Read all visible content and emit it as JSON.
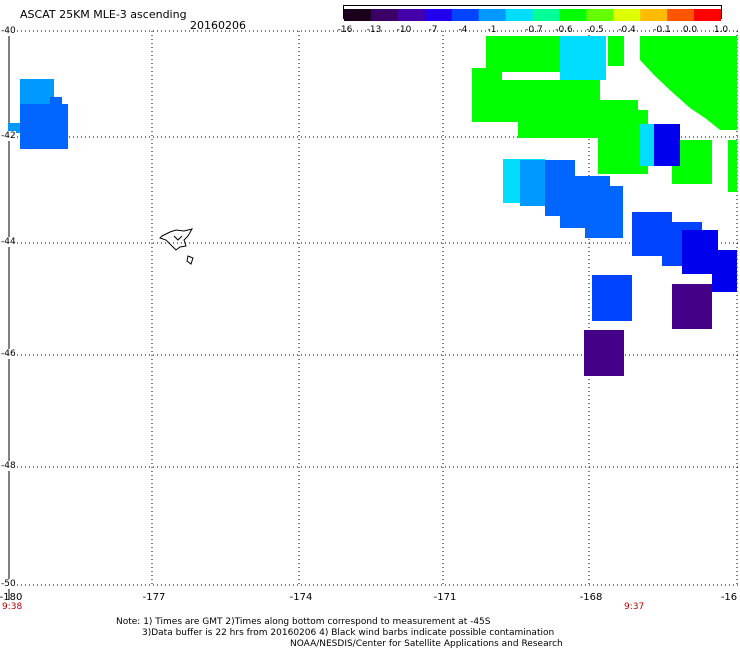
{
  "header": {
    "title": "ASCAT 25KM MLE-3 ascending",
    "date": "20160206"
  },
  "colorbar": {
    "labels": [
      "-16",
      "-13",
      "-10",
      "-7",
      "-4",
      "-1",
      "-0.7",
      "-0.6",
      "-0.5",
      "-0.4",
      "-0.1",
      "0.0",
      "1.0"
    ],
    "colors": [
      "#1a001a",
      "#3a0066",
      "#4400aa",
      "#2200ee",
      "#0044ff",
      "#0099ff",
      "#00ddff",
      "#00ff99",
      "#00ff00",
      "#66ff00",
      "#ddff00",
      "#ffbb00",
      "#ff5500",
      "#ff0000"
    ]
  },
  "axes": {
    "lat_labels": [
      "-40",
      "-42",
      "-44",
      "-46",
      "-48",
      "-50"
    ],
    "lon_labels": [
      "-180",
      "-177",
      "-174",
      "-171",
      "-168",
      "-16"
    ]
  },
  "times": {
    "left": "9:38",
    "right": "9:37"
  },
  "notes": {
    "line1": "Note: 1) Times are GMT 2)Times along bottom correspond to measurement at -45S",
    "line2": "3)Data buffer is 22 hrs from 20160206 4) Black wind barbs indicate possible contamination",
    "line3": "NOAA/NESDIS/Center for Satellite Applications and Research"
  },
  "swath_colors": {
    "green": "#00ff00",
    "cyan": "#00ddff",
    "light_blue": "#0099ff",
    "mid_blue": "#0066ff",
    "blue": "#0044ff",
    "dark_blue": "#0000ee",
    "purple": "#440088"
  }
}
